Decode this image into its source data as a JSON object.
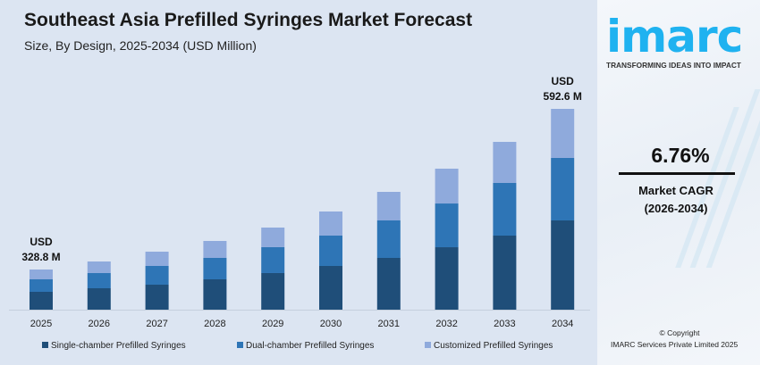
{
  "title": "Southeast Asia Prefilled Syringes Market Forecast",
  "subtitle": "Size, By Design, 2025-2034 (USD Million)",
  "chart_data": {
    "type": "bar",
    "stacked": true,
    "title": "Southeast Asia Prefilled Syringes Market Forecast",
    "subtitle": "Size, By Design, 2025-2034 (USD Million)",
    "categories": [
      "2025",
      "2026",
      "2027",
      "2028",
      "2029",
      "2030",
      "2031",
      "2032",
      "2033",
      "2034"
    ],
    "series": [
      {
        "name": "Single-chamber Prefilled Syringes",
        "color": "#1f4e79",
        "values": [
          146.1,
          152.0,
          154.3,
          165.9,
          177.3,
          188.9,
          200.5,
          219.0,
          237.7,
          263.4
        ]
      },
      {
        "name": "Dual-chamber Prefilled Syringes",
        "color": "#2e75b6",
        "values": [
          102.3,
          107.7,
          115.7,
          117.1,
          125.4,
          131.1,
          145.2,
          153.3,
          169.0,
          184.4
        ]
      },
      {
        "name": "Customized Prefilled Syringes",
        "color": "#8faadc",
        "values": [
          80.4,
          82.3,
          88.1,
          92.7,
          95.0,
          104.1,
          110.6,
          122.1,
          131.7,
          144.8
        ]
      }
    ],
    "totals": [
      328.8,
      342.0,
      358.1,
      375.7,
      397.7,
      424.1,
      456.3,
      494.4,
      538.4,
      592.6
    ],
    "annotations": [
      {
        "category": "2025",
        "line1": "USD",
        "line2": "328.8 M"
      },
      {
        "category": "2034",
        "line1": "USD",
        "line2": "592.6 M"
      }
    ],
    "legend_position": "bottom",
    "grid": false,
    "xlabel": "",
    "ylabel": ""
  },
  "side": {
    "logo": "imarc",
    "tagline": "TRANSFORMING IDEAS INTO IMPACT",
    "cagr": "6.76%",
    "cagr_label": "Market CAGR",
    "cagr_period": "(2026-2034)",
    "copyright": "© Copyright",
    "company": "IMARC Services Private Limited 2025"
  }
}
